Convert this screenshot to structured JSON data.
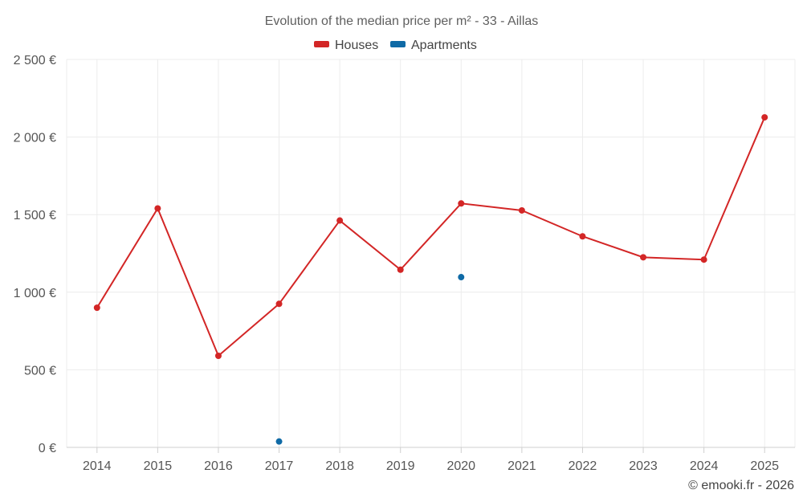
{
  "chart_data": {
    "type": "line",
    "title": "Evolution of the median price per m² - 33 - Aillas",
    "xlabel": "",
    "ylabel": "",
    "categories": [
      "2014",
      "2015",
      "2016",
      "2017",
      "2018",
      "2019",
      "2020",
      "2021",
      "2022",
      "2023",
      "2024",
      "2025"
    ],
    "ylim": [
      0,
      2500
    ],
    "yticks": [
      0,
      500,
      1000,
      1500,
      2000,
      2500
    ],
    "ytick_labels": [
      "0 €",
      "500 €",
      "1 000 €",
      "1 500 €",
      "2 000 €",
      "2 500 €"
    ],
    "grid": true,
    "legend_position": "top-center",
    "series": [
      {
        "name": "Houses",
        "color": "#d32626",
        "values": [
          900,
          1540,
          590,
          925,
          1462,
          1145,
          1572,
          1527,
          1360,
          1225,
          1210,
          2127
        ]
      },
      {
        "name": "Apartments",
        "color": "#0f6aa6",
        "values": [
          null,
          null,
          null,
          38,
          null,
          null,
          1097,
          null,
          null,
          null,
          null,
          null
        ]
      }
    ]
  },
  "credit": "© emooki.fr - 2026"
}
